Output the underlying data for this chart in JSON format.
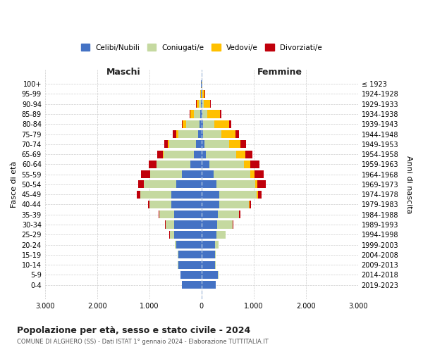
{
  "age_groups": [
    "100+",
    "95-99",
    "90-94",
    "85-89",
    "80-84",
    "75-79",
    "70-74",
    "65-69",
    "60-64",
    "55-59",
    "50-54",
    "45-49",
    "40-44",
    "35-39",
    "30-34",
    "25-29",
    "20-24",
    "15-19",
    "10-14",
    "5-9",
    "0-4"
  ],
  "birth_years": [
    "≤ 1923",
    "1924-1928",
    "1929-1933",
    "1934-1938",
    "1939-1943",
    "1944-1948",
    "1949-1953",
    "1954-1958",
    "1959-1963",
    "1964-1968",
    "1969-1973",
    "1974-1978",
    "1979-1983",
    "1984-1988",
    "1989-1993",
    "1994-1998",
    "1999-2003",
    "2004-2008",
    "2009-2013",
    "2014-2018",
    "2019-2023"
  ],
  "maschi": {
    "celibi": [
      5,
      8,
      12,
      25,
      40,
      65,
      100,
      150,
      220,
      380,
      480,
      580,
      580,
      530,
      530,
      530,
      480,
      450,
      450,
      400,
      380
    ],
    "coniugati": [
      2,
      8,
      40,
      120,
      250,
      380,
      520,
      580,
      640,
      600,
      620,
      590,
      420,
      280,
      160,
      80,
      30,
      8,
      3,
      2,
      1
    ],
    "vedovi": [
      2,
      10,
      40,
      70,
      70,
      40,
      25,
      15,
      8,
      4,
      4,
      2,
      2,
      1,
      1,
      1,
      1,
      0,
      0,
      0,
      0
    ],
    "divorziati": [
      1,
      3,
      10,
      15,
      15,
      70,
      70,
      100,
      140,
      180,
      110,
      70,
      25,
      15,
      8,
      4,
      2,
      2,
      1,
      0,
      0
    ]
  },
  "femmine": {
    "nubili": [
      5,
      8,
      10,
      15,
      25,
      35,
      60,
      90,
      150,
      230,
      290,
      340,
      340,
      310,
      300,
      290,
      265,
      260,
      265,
      320,
      270
    ],
    "coniugate": [
      2,
      8,
      30,
      100,
      220,
      340,
      470,
      570,
      670,
      710,
      740,
      720,
      570,
      410,
      300,
      170,
      60,
      12,
      4,
      2,
      1
    ],
    "vedove": [
      4,
      45,
      130,
      240,
      280,
      270,
      220,
      180,
      110,
      70,
      45,
      18,
      8,
      4,
      2,
      2,
      1,
      1,
      0,
      0,
      0
    ],
    "divorziate": [
      1,
      4,
      8,
      25,
      50,
      70,
      110,
      130,
      180,
      185,
      155,
      70,
      35,
      18,
      8,
      4,
      2,
      2,
      1,
      0,
      0
    ]
  },
  "colors": {
    "celibi": "#4472c4",
    "coniugati": "#c5d9a0",
    "vedovi": "#ffc000",
    "divorziati": "#c0000b"
  },
  "xlim": 3000,
  "title_main": "Popolazione per età, sesso e stato civile - 2024",
  "title_sub": "COMUNE DI ALGHERO (SS) - Dati ISTAT 1° gennaio 2024 - Elaborazione TUTTITALIA.IT",
  "ylabel_left": "Fasce di età",
  "ylabel_right": "Anni di nascita",
  "legend_labels": [
    "Celibi/Nubili",
    "Coniugati/e",
    "Vedovi/e",
    "Divorziati/e"
  ],
  "maschi_label": "Maschi",
  "femmine_label": "Femmine",
  "bg_color": "#ffffff",
  "grid_color": "#cccccc",
  "text_color_main": "#222222",
  "text_color_sub": "#555555"
}
